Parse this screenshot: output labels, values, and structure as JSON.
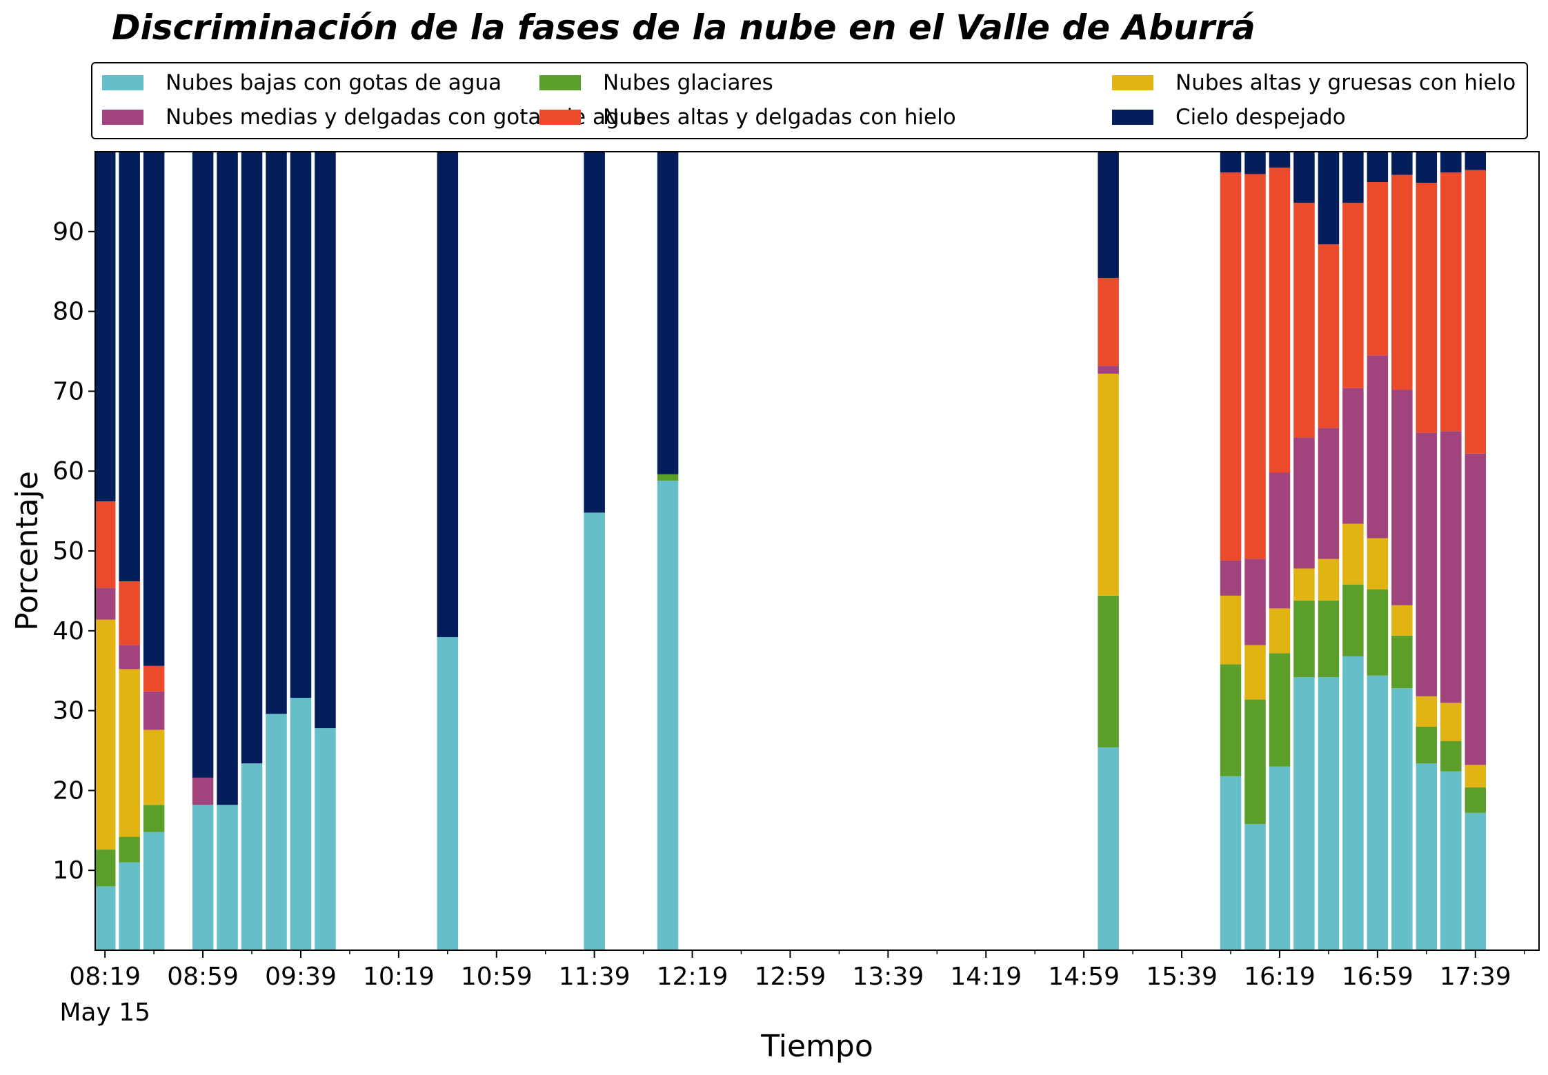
{
  "chart_data": {
    "type": "bar",
    "stacked": true,
    "title": "Discriminación de la fases de la nube en el Valle de Aburrá",
    "xlabel": "Tiempo",
    "ylabel": "Porcentaje",
    "ylim": [
      0,
      100
    ],
    "yticks": [
      10,
      20,
      30,
      40,
      50,
      60,
      70,
      80,
      90
    ],
    "x_tick_labels": [
      "08:19",
      "08:59",
      "09:39",
      "10:19",
      "10:59",
      "11:39",
      "12:19",
      "12:59",
      "13:39",
      "14:19",
      "14:59",
      "15:39",
      "16:19",
      "16:59",
      "17:39"
    ],
    "x_date_label": "May 15",
    "x_tick_minutes": [
      0,
      40,
      80,
      120,
      160,
      200,
      240,
      280,
      320,
      360,
      400,
      440,
      480,
      520,
      560
    ],
    "x_minor_minutes": [
      20,
      60,
      100,
      140,
      180,
      220,
      260,
      300,
      340,
      380,
      420,
      460,
      500,
      540,
      580
    ],
    "xlim_minutes": [
      -4,
      586
    ],
    "bar_width_minutes": 8.6,
    "legend": {
      "placement": "top",
      "columns": 3
    },
    "grid": false,
    "x": [
      0,
      10,
      20,
      40,
      50,
      60,
      70,
      80,
      90,
      140,
      200,
      230,
      410,
      460,
      470,
      480,
      490,
      500,
      510,
      520,
      530,
      540,
      550,
      560
    ],
    "series": [
      {
        "name": "Nubes bajas con gotas de agua",
        "color": "#65BEC8",
        "values": [
          8,
          11,
          14.8,
          18.2,
          18.2,
          23.4,
          29.6,
          31.6,
          27.8,
          39.2,
          54.8,
          58.8,
          25.4,
          21.8,
          15.8,
          23.0,
          34.2,
          34.2,
          36.8,
          34.4,
          32.8,
          23.4,
          22.4,
          17.2
        ]
      },
      {
        "name": "Nubes glaciares",
        "color": "#5C9E2A",
        "values": [
          4.6,
          3.2,
          3.4,
          0,
          0,
          0,
          0,
          0,
          0,
          0,
          0,
          0.8,
          19.0,
          14.0,
          15.6,
          14.2,
          9.6,
          9.6,
          9.0,
          10.8,
          6.6,
          4.6,
          3.8,
          3.2
        ]
      },
      {
        "name": "Nubes altas y gruesas con hielo",
        "color": "#E1B414",
        "values": [
          28.8,
          21.0,
          9.4,
          0,
          0,
          0,
          0,
          0,
          0,
          0,
          0,
          0,
          27.8,
          8.6,
          6.8,
          5.6,
          4.0,
          5.2,
          7.6,
          6.4,
          3.8,
          3.8,
          4.8,
          2.8
        ]
      },
      {
        "name": "Nubes medias y delgadas con gotas de agua",
        "color": "#A1437C",
        "values": [
          4.0,
          3.0,
          4.8,
          3.4,
          0,
          0,
          0,
          0,
          0,
          0,
          0,
          0,
          1.0,
          4.4,
          10.8,
          17.0,
          16.4,
          16.4,
          17.0,
          22.9,
          27.0,
          33.0,
          34.0,
          39.0
        ]
      },
      {
        "name": "Nubes altas y delgadas con hielo",
        "color": "#EB4B2B",
        "values": [
          10.8,
          8.0,
          3.2,
          0,
          0,
          0,
          0,
          0,
          0,
          0,
          0,
          0,
          11.0,
          48.6,
          48.2,
          38.2,
          29.4,
          23.0,
          23.2,
          21.7,
          26.9,
          31.3,
          32.4,
          35.5
        ]
      },
      {
        "name": "Cielo despejado",
        "color": "#041E5C",
        "values": [
          44.0,
          53.8,
          64.4,
          78.4,
          81.8,
          76.6,
          70.4,
          68.4,
          72.2,
          60.8,
          45.2,
          40.4,
          15.8,
          2.6,
          2.8,
          2.0,
          6.4,
          11.6,
          6.4,
          3.8,
          2.9,
          3.9,
          2.6,
          2.3
        ]
      }
    ]
  }
}
